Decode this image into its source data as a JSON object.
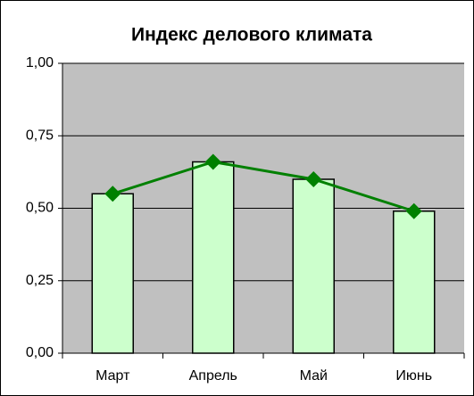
{
  "chart_data": {
    "type": "combo",
    "title": "Индекс делового климата",
    "categories": [
      "Март",
      "Апрель",
      "Май",
      "Июнь"
    ],
    "values": [
      0.55,
      0.66,
      0.6,
      0.49
    ],
    "bar_color": "#ccffcc",
    "line_color": "#008000",
    "ylim": [
      0,
      1
    ],
    "yticks": [
      {
        "value": 0,
        "label": "0,00"
      },
      {
        "value": 0.25,
        "label": "0,25"
      },
      {
        "value": 0.5,
        "label": "0,50"
      },
      {
        "value": 0.75,
        "label": "0,75"
      },
      {
        "value": 1,
        "label": "1,00"
      }
    ],
    "grid": true
  }
}
